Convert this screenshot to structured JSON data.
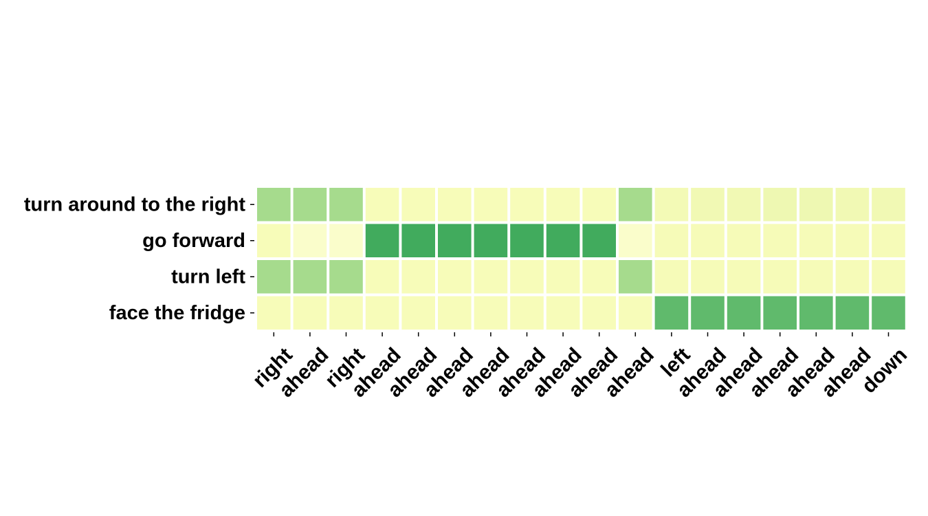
{
  "chart_data": {
    "type": "heatmap",
    "rows": [
      "turn around to the right",
      "go forward",
      "turn left",
      "face the fridge"
    ],
    "columns": [
      "right",
      "ahead",
      "right",
      "ahead",
      "ahead",
      "ahead",
      "ahead",
      "ahead",
      "ahead",
      "ahead",
      "ahead",
      "left",
      "ahead",
      "ahead",
      "ahead",
      "ahead",
      "ahead",
      "down"
    ],
    "values": [
      [
        0.35,
        0.35,
        0.35,
        0.05,
        0.05,
        0.05,
        0.05,
        0.05,
        0.05,
        0.05,
        0.35,
        0.08,
        0.1,
        0.1,
        0.12,
        0.12,
        0.1,
        0.1
      ],
      [
        0.05,
        0.03,
        0.03,
        0.95,
        0.95,
        0.95,
        0.95,
        0.95,
        0.95,
        0.95,
        0.03,
        0.06,
        0.06,
        0.06,
        0.06,
        0.06,
        0.06,
        0.06
      ],
      [
        0.35,
        0.35,
        0.35,
        0.05,
        0.05,
        0.05,
        0.05,
        0.05,
        0.05,
        0.05,
        0.35,
        0.06,
        0.06,
        0.06,
        0.06,
        0.06,
        0.06,
        0.06
      ],
      [
        0.05,
        0.05,
        0.05,
        0.05,
        0.05,
        0.05,
        0.05,
        0.05,
        0.05,
        0.05,
        0.05,
        0.8,
        0.8,
        0.8,
        0.8,
        0.8,
        0.8,
        0.8
      ]
    ],
    "colormap": "YlGn",
    "vmin": 0,
    "vmax": 1,
    "grid": false,
    "legend": "none"
  }
}
